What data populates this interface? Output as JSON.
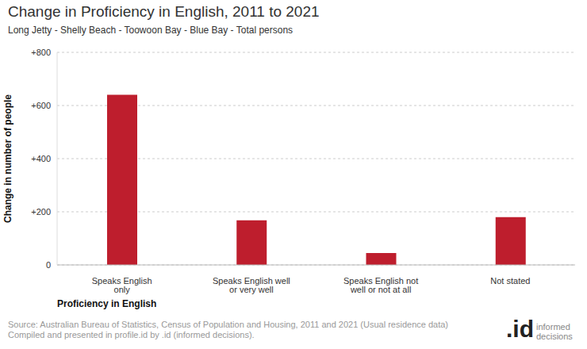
{
  "chart_data": {
    "type": "bar",
    "title": "Change in Proficiency in English, 2011 to 2021",
    "subtitle": "Long Jetty - Shelly Beach - Toowoon Bay - Blue Bay - Total persons",
    "x_label": "Proficiency in English",
    "y_label": "Change in number of people",
    "categories": [
      "Speaks English only",
      "Speaks English well or very well",
      "Speaks English not well or not at all",
      "Not stated"
    ],
    "values": [
      640,
      168,
      45,
      180
    ],
    "color": "#be1e2d",
    "ylim": [
      0,
      800
    ],
    "yticks": [
      0,
      {
        "value": 200,
        "label": "+200"
      },
      {
        "value": 400,
        "label": "+400"
      },
      {
        "value": 600,
        "label": "+600"
      },
      {
        "value": 800,
        "label": "+800"
      }
    ],
    "grid": true,
    "source": [
      "Source: Australian Bureau of Statistics, Census of Population and Housing, 2011 and 2021 (Usual residence data)",
      "Compiled and presented in profile.id by .id (informed decisions)."
    ],
    "logo": {
      "mark": ".id",
      "text": "informed decisions"
    }
  }
}
